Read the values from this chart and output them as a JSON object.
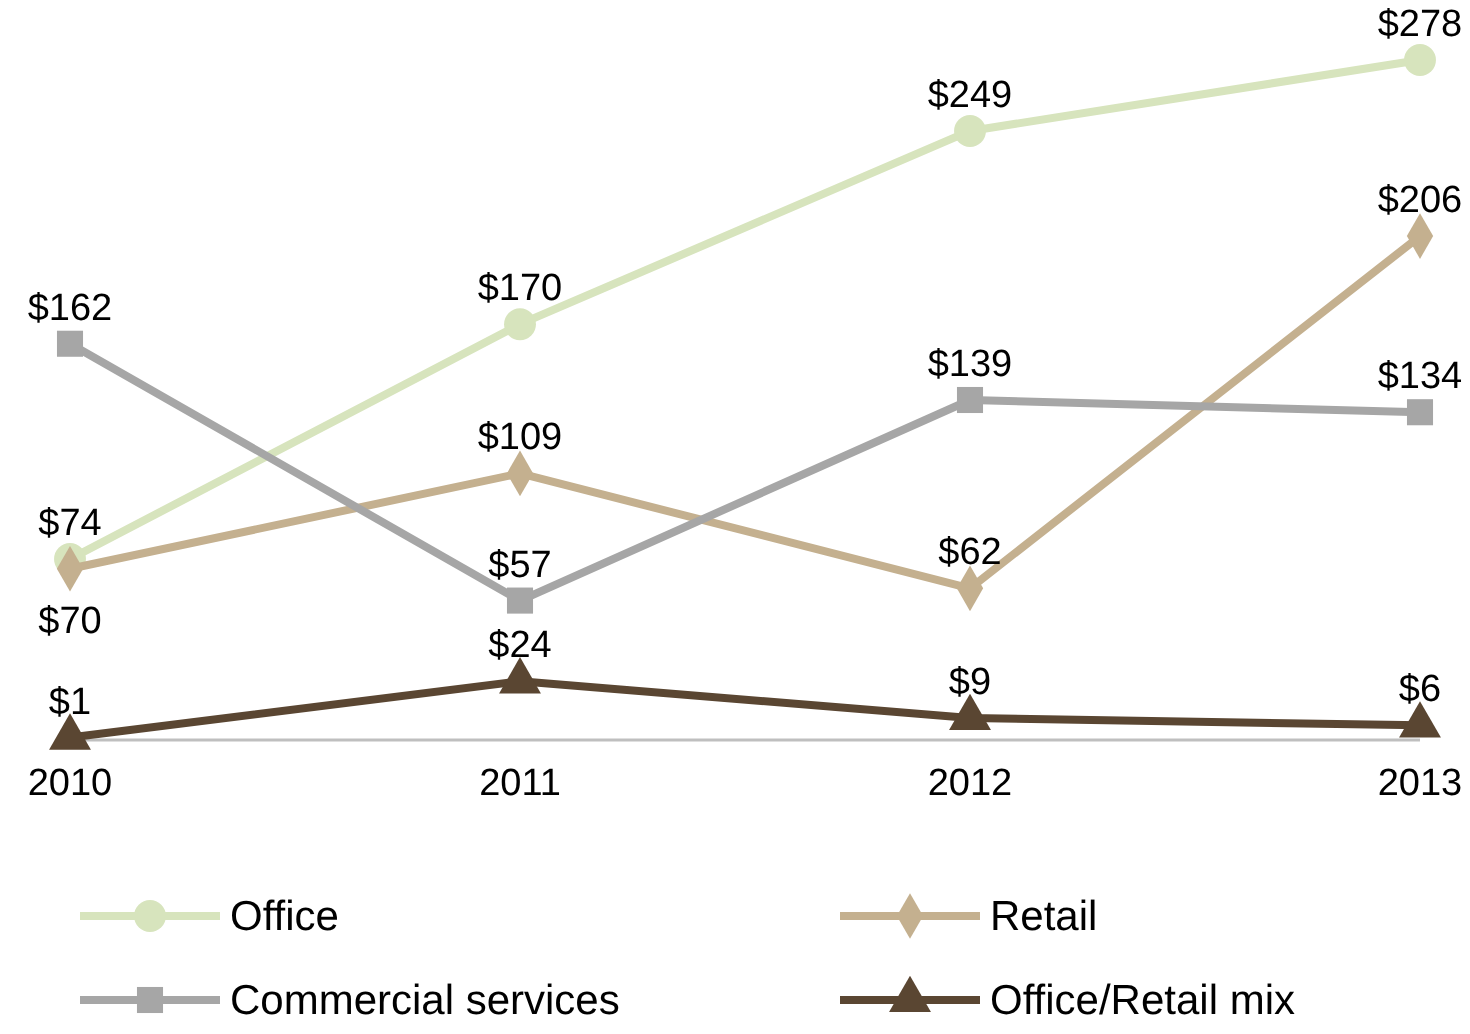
{
  "chart_data": {
    "type": "line",
    "categories": [
      "2010",
      "2011",
      "2012",
      "2013"
    ],
    "tick_labels": "x",
    "legend": "bottom",
    "series": [
      {
        "name": "Office",
        "color": "#d7e4bd",
        "marker": "circle",
        "values": [
          74,
          170,
          249,
          278
        ],
        "value_labels": [
          "$74",
          "$170",
          "$249",
          "$278"
        ]
      },
      {
        "name": "Retail",
        "color": "#c4b08f",
        "marker": "diamond",
        "values": [
          70,
          109,
          62,
          206
        ],
        "value_labels": [
          "$70",
          "$109",
          "$62",
          "$206"
        ]
      },
      {
        "name": "Commercial services",
        "color": "#a6a6a6",
        "marker": "square",
        "values": [
          162,
          57,
          139,
          134
        ],
        "value_labels": [
          "$162",
          "$57",
          "$139",
          "$134"
        ]
      },
      {
        "name": "Office/Retail mix",
        "color": "#5a4632",
        "marker": "triangle",
        "values": [
          1,
          24,
          9,
          6
        ],
        "value_labels": [
          "$1",
          "$24",
          "$9",
          "$6"
        ]
      }
    ]
  }
}
